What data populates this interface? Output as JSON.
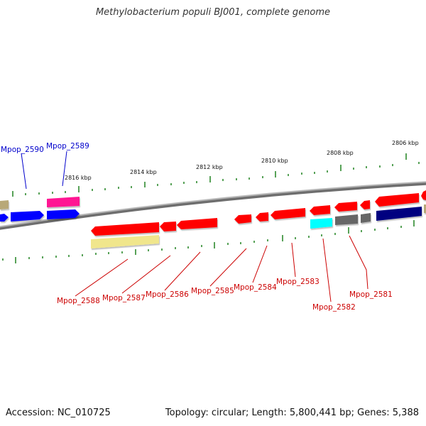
{
  "title": "Methylobacterium populi BJ001, complete genome",
  "footer": {
    "accession": "Accession: NC_010725",
    "topology": "Topology: circular; Length: 5,800,441 bp; Genes: 5,388"
  },
  "colors": {
    "backbone": "#8a8a8a",
    "tick": "#2e8b2e",
    "label_top": "#0000cc",
    "label_bottom": "#cc0000",
    "red": "#ff0000",
    "blue": "#0000ff",
    "navy": "#000080",
    "magenta": "#ff1493",
    "khaki": "#f0e68c",
    "cyan": "#00ffff",
    "grey": "#666666",
    "olive": "#b8a878"
  },
  "scale_labels": [
    "2816 kbp",
    "2814 kbp",
    "2812 kbp",
    "2810 kbp",
    "2808 kbp",
    "2806 kbp"
  ],
  "top_gene_labels": [
    "Mpop_2590",
    "Mpop_2589"
  ],
  "bottom_gene_labels": [
    "Mpop_2588",
    "Mpop_2587",
    "Mpop_2586",
    "Mpop_2585",
    "Mpop_2584",
    "Mpop_2583",
    "Mpop_2582",
    "Mpop_2581"
  ]
}
